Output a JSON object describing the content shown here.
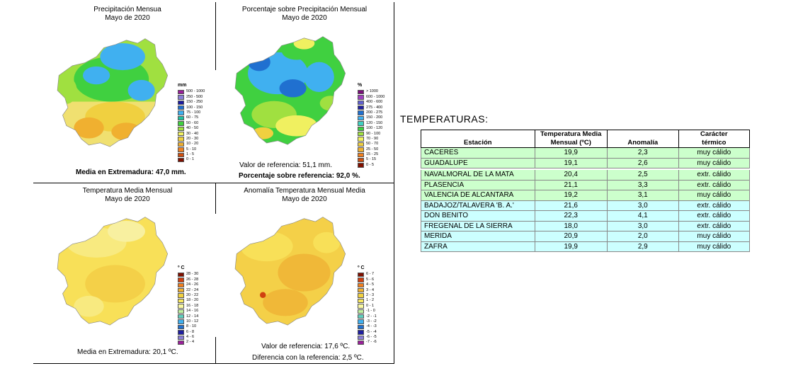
{
  "panels": {
    "precip": {
      "title_line1": "Precipitación Mensua",
      "title_line2": "Mayo de 2020",
      "caption": "Media en Extremadura: 47,0 mm.",
      "legend_unit": "mm",
      "legend": [
        "500 - 1000",
        "250 - 500",
        "150 - 250",
        "100 - 150",
        "75 - 100",
        "60 - 75",
        "50 - 60",
        "40 - 50",
        "30 - 40",
        "20 - 30",
        "10 - 20",
        "5 - 10",
        "1 - 5",
        "0 - 1"
      ],
      "legend_colors": [
        "#9a1f9a",
        "#8a7fd8",
        "#1a1aa0",
        "#2070d0",
        "#40b0f0",
        "#20c0a0",
        "#40d040",
        "#a0e040",
        "#f0f060",
        "#f0d040",
        "#f0b030",
        "#f08020",
        "#d05010",
        "#801000"
      ]
    },
    "percent": {
      "title_line1": "Porcentaje sobre Precipitación Mensual",
      "title_line2": "Mayo de 2020",
      "caption1": "Valor de referencia: 51,1 mm.",
      "caption2": "Porcentaje sobre referencia: 92,0 %.",
      "legend_unit": "%",
      "legend": [
        "> 1000",
        "600 - 1000",
        "400 - 600",
        "275 - 400",
        "200 - 275",
        "150 - 200",
        "120 - 150",
        "100 - 120",
        "90 - 100",
        "70 - 90",
        "50 - 70",
        "25 - 50",
        "15 - 25",
        "5 - 15",
        "0 - 5"
      ],
      "legend_colors": [
        "#7a107a",
        "#a040c0",
        "#6060d0",
        "#2020a0",
        "#2070d0",
        "#40b0f0",
        "#40d0c0",
        "#40d040",
        "#a0e040",
        "#f0f060",
        "#f0d040",
        "#f0b030",
        "#f08020",
        "#d05010",
        "#801000"
      ]
    },
    "temp": {
      "title_line1": "Temperatura Media Mensual",
      "title_line2": "Mayo de 2020",
      "caption": "Media en Extremadura: 20,1 ºC.",
      "legend_unit": "º C",
      "legend": [
        "28 - 30",
        "26 - 28",
        "24 - 26",
        "22 - 24",
        "20 - 22",
        "18 - 20",
        "16 - 18",
        "14 - 16",
        "12 - 14",
        "10 - 12",
        "8 - 10",
        "6 - 8",
        "4 - 6",
        "2 - 4"
      ],
      "legend_colors": [
        "#801000",
        "#d04010",
        "#f08020",
        "#f0b030",
        "#f0d040",
        "#f8e860",
        "#f8f8a0",
        "#c0f0a0",
        "#60d0c0",
        "#40b0f0",
        "#2070d0",
        "#2020a0",
        "#8a7fd8",
        "#9a1f9a"
      ]
    },
    "anomaly": {
      "title_line1": "Anomalía Temperatura Mensual Media",
      "title_line2": "Mayo de 2020",
      "caption1": "Valor de referencia: 17,6 ºC.",
      "caption2": "Diferencia con la referencia: 2,5 ºC.",
      "legend_unit": "º C",
      "legend": [
        "6 - 7",
        "5 - 6",
        "4 - 5",
        "3 - 4",
        "2 - 3",
        "1 - 2",
        "0 - 1",
        "-1 - 0",
        "-2 - -1",
        "-3 - -2",
        "-4 - -3",
        "-5 - -4",
        "-6 - -5",
        "-7 - -6"
      ],
      "legend_colors": [
        "#801000",
        "#d04010",
        "#f08020",
        "#f0b030",
        "#f0d040",
        "#f8e860",
        "#f8f8a0",
        "#c0f0a0",
        "#60d0c0",
        "#40b0f0",
        "#2070d0",
        "#2020a0",
        "#8a7fd8",
        "#9a1f9a"
      ]
    }
  },
  "temperaturas": {
    "title": "TEMPERATURAS:",
    "headers": {
      "station": "Estación",
      "temp_line1": "Temperatura Media",
      "temp_line2": "Mensual (ºC)",
      "anomaly": "Anomalía",
      "char_line1": "Carácter",
      "char_line2": "térmico"
    },
    "rows": [
      {
        "station": "CACERES",
        "temp": "19,9",
        "anom": "2,3",
        "car": "muy cálido",
        "color": "green"
      },
      {
        "station": "GUADALUPE",
        "temp": "19,1",
        "anom": "2,6",
        "car": "muy cálido",
        "color": "green"
      },
      {
        "station": "NAVALMORAL DE LA MATA",
        "temp": "20,4",
        "anom": "2,5",
        "car": "extr. cálido",
        "color": "green"
      },
      {
        "station": "PLASENCIA",
        "temp": "21,1",
        "anom": "3,3",
        "car": "extr. cálido",
        "color": "green"
      },
      {
        "station": "VALENCIA DE ALCANTARA",
        "temp": "19,2",
        "anom": "3,1",
        "car": "muy cálido",
        "color": "green"
      },
      {
        "station": "BADAJOZ/TALAVERA 'B. A.'",
        "temp": "21,6",
        "anom": "3,0",
        "car": "extr. cálido",
        "color": "cyan"
      },
      {
        "station": "DON BENITO",
        "temp": "22,3",
        "anom": "4,1",
        "car": "extr. cálido",
        "color": "cyan"
      },
      {
        "station": "FREGENAL DE LA SIERRA",
        "temp": "18,0",
        "anom": "3,0",
        "car": "extr. cálido",
        "color": "cyan"
      },
      {
        "station": "MERIDA",
        "temp": "20,9",
        "anom": "2,0",
        "car": "muy cálido",
        "color": "cyan"
      },
      {
        "station": "ZAFRA",
        "temp": "19,9",
        "anom": "2,9",
        "car": "muy cálido",
        "color": "cyan"
      }
    ]
  }
}
